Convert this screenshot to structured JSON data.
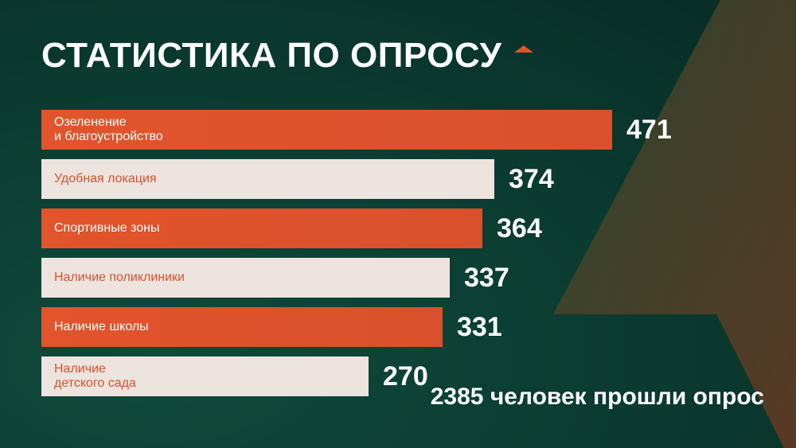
{
  "title": "СТАТИСТИКА ПО ОПРОСУ",
  "footer_text": "2385 человек прошли опрос",
  "colors": {
    "accent": "#e2542b",
    "light_bar": "#ede3df",
    "background": "#0c3f33"
  },
  "chart_data": {
    "type": "bar",
    "orientation": "horizontal",
    "categories": [
      "Озеленение\nи благоустройство",
      "Удобная локация",
      "Спортивные зоны",
      "Наличие поликлиники",
      "Наличие школы",
      "Наличие\nдетского сада"
    ],
    "values": [
      471,
      374,
      364,
      337,
      331,
      270
    ],
    "value_labels": [
      "471",
      "374",
      "364",
      "337",
      "331",
      "270"
    ],
    "bar_styles": [
      "orange",
      "light",
      "orange",
      "light",
      "orange",
      "light"
    ],
    "title": "СТАТИСТИКА ПО ОПРОСУ",
    "xlabel": "",
    "ylabel": "",
    "grid": false
  }
}
